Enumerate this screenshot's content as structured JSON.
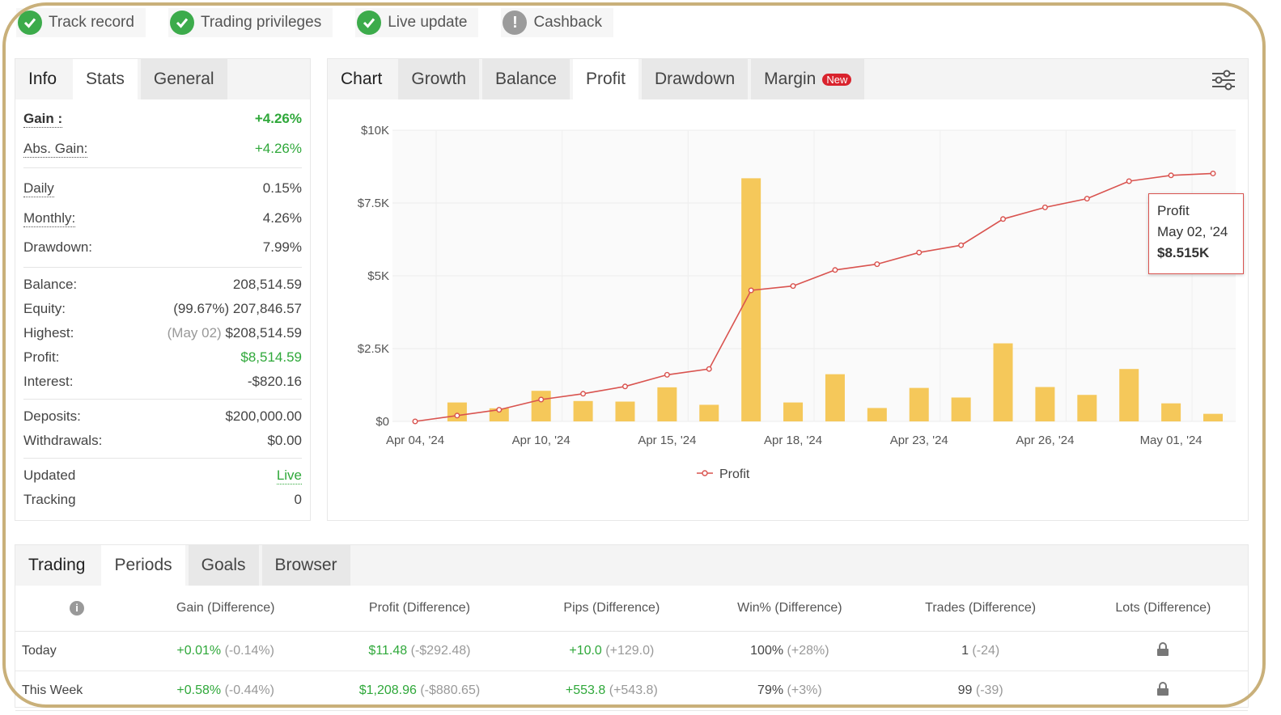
{
  "badges": {
    "track_record": "Track record",
    "trading_privileges": "Trading privileges",
    "live_update": "Live update",
    "cashback": "Cashback"
  },
  "info": {
    "tabs": [
      "Info",
      "Stats",
      "General"
    ],
    "gain_label": "Gain :",
    "gain_value": "+4.26%",
    "abs_gain_label": "Abs. Gain:",
    "abs_gain_value": "+4.26%",
    "daily_label": "Daily",
    "daily_value": "0.15%",
    "monthly_label": "Monthly:",
    "monthly_value": "4.26%",
    "drawdown_label": "Drawdown:",
    "drawdown_value": "7.99%",
    "balance_label": "Balance:",
    "balance_value": "208,514.59",
    "equity_label": "Equity:",
    "equity_pct": "(99.67%)",
    "equity_value": "207,846.57",
    "highest_label": "Highest:",
    "highest_date": "(May 02)",
    "highest_value": "$208,514.59",
    "profit_label": "Profit:",
    "profit_value": "$8,514.59",
    "interest_label": "Interest:",
    "interest_value": "-$820.16",
    "deposits_label": "Deposits:",
    "deposits_value": "$200,000.00",
    "withdrawals_label": "Withdrawals:",
    "withdrawals_value": "$0.00",
    "updated_label": "Updated",
    "updated_value": "Live",
    "tracking_label": "Tracking",
    "tracking_value": "0"
  },
  "chart_panel": {
    "tabs": [
      "Chart",
      "Growth",
      "Balance",
      "Profit",
      "Drawdown",
      "Margin"
    ],
    "new_badge": "New",
    "tooltip": {
      "title": "Profit",
      "date": "May 02, '24",
      "value": "$8.515K"
    }
  },
  "chart_data": {
    "type": "line",
    "y_tick_labels": [
      "$0",
      "$2.5K",
      "$5K",
      "$7.5K",
      "$10K"
    ],
    "y_ticks": [
      0,
      2500,
      5000,
      7500,
      10000
    ],
    "ylim": [
      0,
      10000
    ],
    "x_tick_labels": [
      "Apr 04, '24",
      "Apr 10, '24",
      "Apr 15, '24",
      "Apr 18, '24",
      "Apr 23, '24",
      "Apr 26, '24",
      "May 01, '24"
    ],
    "x_tick_indices": [
      0,
      3,
      6,
      9,
      12,
      15,
      18
    ],
    "legend": "Profit",
    "series": [
      {
        "name": "Profit",
        "type": "line",
        "values": [
          0,
          200,
          400,
          750,
          950,
          1200,
          1600,
          1800,
          4500,
          4650,
          5200,
          5400,
          5800,
          6050,
          6950,
          7350,
          7650,
          8250,
          8450,
          8515
        ]
      }
    ],
    "bars": [
      {
        "i": 1,
        "value": 650
      },
      {
        "i": 2,
        "value": 450
      },
      {
        "i": 3,
        "value": 1050
      },
      {
        "i": 4,
        "value": 700
      },
      {
        "i": 5,
        "value": 680
      },
      {
        "i": 6,
        "value": 1170
      },
      {
        "i": 7,
        "value": 570
      },
      {
        "i": 8,
        "value": 8350
      },
      {
        "i": 9,
        "value": 650
      },
      {
        "i": 10,
        "value": 1620
      },
      {
        "i": 11,
        "value": 460
      },
      {
        "i": 12,
        "value": 1150
      },
      {
        "i": 13,
        "value": 820
      },
      {
        "i": 14,
        "value": 2680
      },
      {
        "i": 15,
        "value": 1180
      },
      {
        "i": 16,
        "value": 910
      },
      {
        "i": 17,
        "value": 1800
      },
      {
        "i": 18,
        "value": 620
      },
      {
        "i": 19,
        "value": 260
      }
    ],
    "colors": {
      "line": "#d9534f",
      "bar": "#f5c85a",
      "grid": "#ececec"
    }
  },
  "trading": {
    "tabs": [
      "Trading",
      "Periods",
      "Goals",
      "Browser"
    ],
    "headers": [
      "Gain (Difference)",
      "Profit (Difference)",
      "Pips (Difference)",
      "Win% (Difference)",
      "Trades (Difference)",
      "Lots (Difference)"
    ],
    "rows": [
      {
        "period": "Today",
        "gain": "+0.01%",
        "gain_diff": "(-0.14%)",
        "profit": "$11.48",
        "profit_diff": "(-$292.48)",
        "pips": "+10.0",
        "pips_diff": "(+129.0)",
        "win": "100%",
        "win_diff": "(+28%)",
        "trades": "1",
        "trades_diff": "(-24)"
      },
      {
        "period": "This Week",
        "gain": "+0.58%",
        "gain_diff": "(-0.44%)",
        "profit": "$1,208.96",
        "profit_diff": "(-$880.65)",
        "pips": "+553.8",
        "pips_diff": "(+543.8)",
        "win": "79%",
        "win_diff": "(+3%)",
        "trades": "99",
        "trades_diff": "(-39)"
      }
    ]
  }
}
